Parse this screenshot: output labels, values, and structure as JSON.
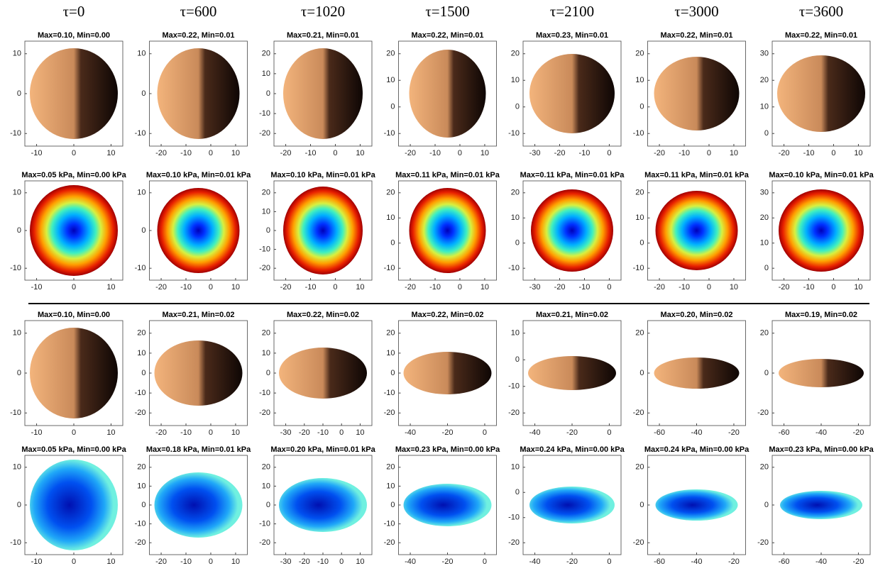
{
  "headers": [
    "τ=0",
    "τ=600",
    "τ=1020",
    "τ=1500",
    "τ=2100",
    "τ=3000",
    "τ=3600"
  ],
  "rows": [
    {
      "panels": [
        {
          "title": "Max=0.10, Min=0.00",
          "yticks": [
            10,
            0,
            -10
          ],
          "xticks": [
            -10,
            0,
            10
          ]
        },
        {
          "title": "Max=0.22, Min=0.01",
          "yticks": [
            10,
            0,
            -10
          ],
          "xticks": [
            -20,
            -10,
            0,
            10
          ]
        },
        {
          "title": "Max=0.21, Min=0.01",
          "yticks": [
            20,
            10,
            0,
            -10,
            -20
          ],
          "xticks": [
            -20,
            -10,
            0,
            10
          ]
        },
        {
          "title": "Max=0.22, Min=0.01",
          "yticks": [
            20,
            10,
            0,
            -10
          ],
          "xticks": [
            -20,
            -10,
            0,
            10
          ]
        },
        {
          "title": "Max=0.23, Min=0.01",
          "yticks": [
            20,
            10,
            0,
            -10
          ],
          "xticks": [
            -30,
            -20,
            -10,
            0
          ]
        },
        {
          "title": "Max=0.22, Min=0.01",
          "yticks": [
            20,
            10,
            0,
            -10
          ],
          "xticks": [
            -20,
            -10,
            0,
            10
          ]
        },
        {
          "title": "Max=0.22, Min=0.01",
          "yticks": [
            30,
            20,
            10,
            0
          ],
          "xticks": [
            -20,
            -10,
            0,
            10
          ]
        }
      ]
    },
    {
      "panels": [
        {
          "title": "Max=0.05 kPa, Min=0.00 kPa",
          "yticks": [
            10,
            0,
            -10
          ],
          "xticks": [
            -10,
            0,
            10
          ]
        },
        {
          "title": "Max=0.10 kPa, Min=0.01 kPa",
          "yticks": [
            10,
            0,
            -10
          ],
          "xticks": [
            -20,
            -10,
            0,
            10
          ]
        },
        {
          "title": "Max=0.10 kPa, Min=0.01 kPa",
          "yticks": [
            20,
            10,
            0,
            -10,
            -20
          ],
          "xticks": [
            -20,
            -10,
            0,
            10
          ]
        },
        {
          "title": "Max=0.11 kPa, Min=0.01 kPa",
          "yticks": [
            20,
            10,
            0,
            -10
          ],
          "xticks": [
            -20,
            -10,
            0,
            10
          ]
        },
        {
          "title": "Max=0.11 kPa, Min=0.01 kPa",
          "yticks": [
            20,
            10,
            0,
            -10
          ],
          "xticks": [
            -30,
            -20,
            -10,
            0
          ]
        },
        {
          "title": "Max=0.11 kPa, Min=0.01 kPa",
          "yticks": [
            20,
            10,
            0,
            -10
          ],
          "xticks": [
            -20,
            -10,
            0,
            10
          ]
        },
        {
          "title": "Max=0.10 kPa, Min=0.01 kPa",
          "yticks": [
            30,
            20,
            10,
            0
          ],
          "xticks": [
            -20,
            -10,
            0,
            10
          ]
        }
      ]
    },
    {
      "panels": [
        {
          "title": "Max=0.10, Min=0.00",
          "yticks": [
            10,
            0,
            -10
          ],
          "xticks": [
            -10,
            0,
            10
          ]
        },
        {
          "title": "Max=0.21, Min=0.02",
          "yticks": [
            20,
            10,
            0,
            -10,
            -20
          ],
          "xticks": [
            -20,
            -10,
            0,
            10
          ]
        },
        {
          "title": "Max=0.22, Min=0.02",
          "yticks": [
            20,
            10,
            0,
            -10,
            -20
          ],
          "xticks": [
            -30,
            -20,
            -10,
            0,
            10
          ]
        },
        {
          "title": "Max=0.22, Min=0.02",
          "yticks": [
            20,
            10,
            0,
            -10,
            -20
          ],
          "xticks": [
            -40,
            -20,
            0
          ]
        },
        {
          "title": "Max=0.21, Min=0.02",
          "yticks": [
            10,
            0,
            -10,
            -20
          ],
          "xticks": [
            -40,
            -20,
            0
          ]
        },
        {
          "title": "Max=0.20, Min=0.02",
          "yticks": [
            20,
            0,
            -20
          ],
          "xticks": [
            -60,
            -40,
            -20
          ]
        },
        {
          "title": "Max=0.19, Min=0.02",
          "yticks": [
            20,
            0,
            -20
          ],
          "xticks": [
            -60,
            -40,
            -20
          ]
        }
      ]
    },
    {
      "panels": [
        {
          "title": "Max=0.05 kPa, Min=0.00 kPa",
          "yticks": [
            10,
            0,
            -10
          ],
          "xticks": [
            -10,
            0,
            10
          ]
        },
        {
          "title": "Max=0.18 kPa, Min=0.01 kPa",
          "yticks": [
            20,
            10,
            0,
            -10,
            -20
          ],
          "xticks": [
            -20,
            -10,
            0,
            10
          ]
        },
        {
          "title": "Max=0.20 kPa, Min=0.01 kPa",
          "yticks": [
            20,
            10,
            0,
            -10,
            -20
          ],
          "xticks": [
            -30,
            -20,
            -10,
            0,
            10
          ]
        },
        {
          "title": "Max=0.23 kPa, Min=0.00 kPa",
          "yticks": [
            20,
            10,
            0,
            -10,
            -20
          ],
          "xticks": [
            -40,
            -20,
            0
          ]
        },
        {
          "title": "Max=0.24 kPa, Min=0.00 kPa",
          "yticks": [
            10,
            0,
            -10,
            -20
          ],
          "xticks": [
            -40,
            -20,
            0
          ]
        },
        {
          "title": "Max=0.24 kPa, Min=0.00 kPa",
          "yticks": [
            20,
            0,
            -20
          ],
          "xticks": [
            -60,
            -40,
            -20
          ]
        },
        {
          "title": "Max=0.23 kPa, Min=0.00 kPa",
          "yticks": [
            20,
            0,
            -20
          ],
          "xticks": [
            -60,
            -40,
            -20
          ]
        }
      ]
    }
  ]
}
